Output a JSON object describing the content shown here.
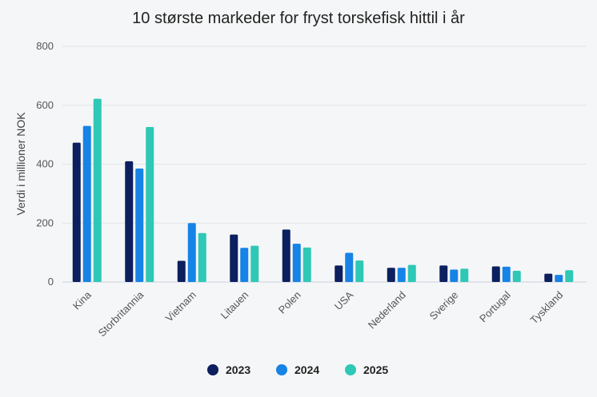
{
  "chart_data": {
    "type": "bar",
    "title": "10 største markeder for fryst torskefisk hittil i år",
    "xlabel": "",
    "ylabel": "Verdi i millioner NOK",
    "ylim": [
      0,
      800
    ],
    "yticks": [
      0,
      200,
      400,
      600,
      800
    ],
    "grid": true,
    "legend_position": "bottom",
    "categories": [
      "Kina",
      "Storbritannia",
      "Vietnam",
      "Litauen",
      "Polen",
      "USA",
      "Nederland",
      "Sverige",
      "Portugal",
      "Tyskland"
    ],
    "series": [
      {
        "name": "2023",
        "color": "#0c1f5e",
        "values": [
          473,
          410,
          72,
          161,
          178,
          56,
          48,
          56,
          53,
          28
        ]
      },
      {
        "name": "2024",
        "color": "#1683e6",
        "values": [
          530,
          385,
          200,
          116,
          130,
          99,
          48,
          42,
          52,
          24
        ]
      },
      {
        "name": "2025",
        "color": "#2ec8b6",
        "values": [
          622,
          526,
          166,
          123,
          117,
          73,
          58,
          45,
          38,
          40
        ]
      }
    ]
  }
}
